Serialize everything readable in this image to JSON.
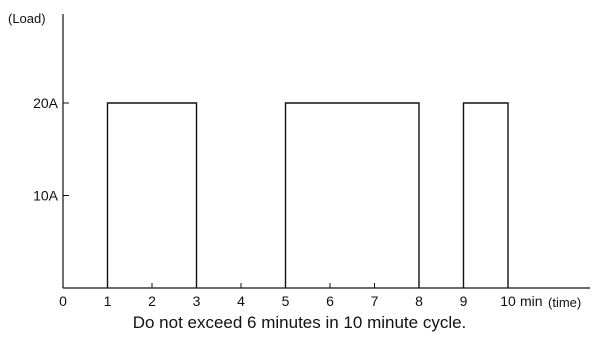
{
  "chart_data": {
    "type": "area",
    "title": "",
    "xlabel": "(time)",
    "ylabel": "(Load)",
    "x_unit": "min",
    "xlim": [
      0,
      10
    ],
    "ylim": [
      0,
      30
    ],
    "x_ticks": [
      0,
      1,
      2,
      3,
      4,
      5,
      6,
      7,
      8,
      9,
      10
    ],
    "x_tick_labels": [
      "0",
      "1",
      "2",
      "3",
      "4",
      "5",
      "6",
      "7",
      "8",
      "9",
      "10"
    ],
    "y_ticks": [
      10,
      20
    ],
    "y_tick_labels": [
      "10A",
      "20A"
    ],
    "grid": false,
    "segments": [
      {
        "start": 1,
        "end": 3,
        "load": 20
      },
      {
        "start": 5,
        "end": 8,
        "load": 20
      },
      {
        "start": 9,
        "end": 10,
        "load": 20
      }
    ],
    "caption": "Do not exceed 6 minutes in 10 minute cycle."
  }
}
